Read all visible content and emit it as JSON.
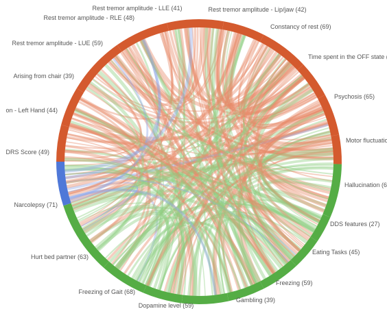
{
  "colors": {
    "red_group": "#d45a2e",
    "blue_group": "#4f78d8",
    "green_group": "#55ad45",
    "ribbon_red": "#e88a6a",
    "ribbon_green": "#8fcf82",
    "ribbon_blue": "#8ea8e6"
  },
  "nodes": [
    {
      "label": "Rest tremor amplitude - LLE (41)",
      "group": "red"
    },
    {
      "label": "Rest tremor amplitude - Lip/jaw (42)",
      "group": "red"
    },
    {
      "label": "Constancy of rest (69)",
      "group": "red"
    },
    {
      "label": "Time spent in the OFF state (40",
      "group": "red"
    },
    {
      "label": "Psychosis (65)",
      "group": "red"
    },
    {
      "label": "Motor fluctuation",
      "group": "red"
    },
    {
      "label": "Hallucination (65",
      "group": "green"
    },
    {
      "label": "DDS features (27)",
      "group": "green"
    },
    {
      "label": "Eating Tasks (45)",
      "group": "green"
    },
    {
      "label": "Freezing (59)",
      "group": "green"
    },
    {
      "label": "Gambling (39)",
      "group": "green"
    },
    {
      "label": "Dopamine level (59)",
      "group": "green"
    },
    {
      "label": "Freezing of Gait (68)",
      "group": "green"
    },
    {
      "label": "Hurt bed partner (63)",
      "group": "green"
    },
    {
      "label": "Narcolepsy (71)",
      "group": "green"
    },
    {
      "label": "DRS Score (49)",
      "group": "blue"
    },
    {
      "label": "on - Left Hand (44)",
      "group": "red"
    },
    {
      "label": "Arising from chair (39)",
      "group": "red"
    },
    {
      "label": "Rest tremor amplitude - LUE (59)",
      "group": "red"
    },
    {
      "label": "Rest tremor amplitude - RLE (48)",
      "group": "red"
    }
  ]
}
